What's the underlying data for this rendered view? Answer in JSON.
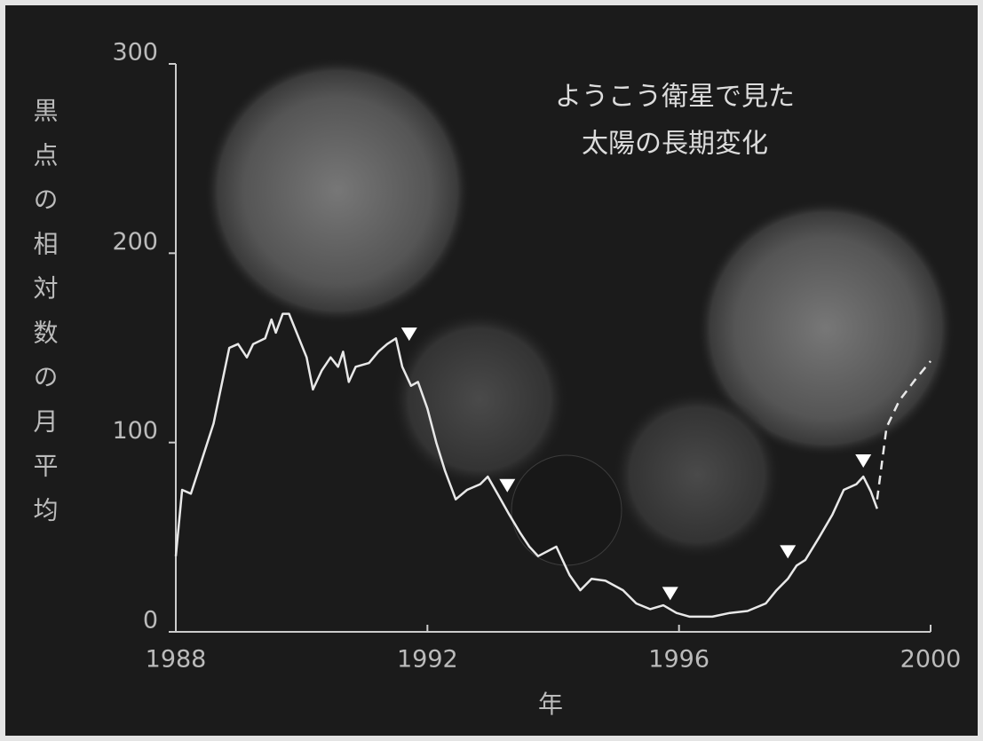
{
  "chart_data": {
    "type": "line",
    "title": [
      "ようこう衛星で見た",
      "太陽の長期変化"
    ],
    "ylabel": "黒点の相対数の月平均",
    "xlabel": "年",
    "xlim": [
      1988,
      2000
    ],
    "xticks": [
      1988,
      1992,
      1996,
      2000
    ],
    "ylim": [
      0,
      300
    ],
    "yticks": [
      0,
      100,
      200,
      300
    ],
    "series": [
      {
        "color": "#e8e8e8",
        "style": "solid",
        "x": [
          1988.0,
          1988.1,
          1988.24,
          1988.6,
          1988.85,
          1988.99,
          1989.13,
          1989.23,
          1989.42,
          1989.52,
          1989.59,
          1989.7,
          1989.8,
          1990.08,
          1990.18,
          1990.32,
          1990.46,
          1990.58,
          1990.66,
          1990.75,
          1990.86,
          1991.07,
          1991.22,
          1991.36,
          1991.5,
          1991.6,
          1991.74,
          1991.85,
          1992.0,
          1992.14,
          1992.28,
          1992.45,
          1992.63,
          1992.84,
          1992.96,
          1993.13,
          1993.3,
          1993.48,
          1993.62,
          1993.76,
          1994.05,
          1994.26,
          1994.43,
          1994.61,
          1994.83,
          1995.11,
          1995.32,
          1995.54,
          1995.75,
          1995.96,
          1996.17,
          1996.53,
          1996.81,
          1997.09,
          1997.38,
          1997.55,
          1997.73,
          1997.87,
          1998.01,
          1998.23,
          1998.44,
          1998.62,
          1998.82,
          1998.93,
          1999.05,
          1999.15
        ],
        "values": [
          40,
          75,
          73,
          110,
          150,
          152,
          145,
          152,
          155,
          165,
          158,
          168,
          168,
          145,
          128,
          138,
          145,
          140,
          148,
          132,
          140,
          142,
          148,
          152,
          155,
          140,
          130,
          132,
          118,
          100,
          85,
          70,
          75,
          78,
          82,
          72,
          62,
          52,
          45,
          40,
          45,
          30,
          22,
          28,
          27,
          22,
          15,
          12,
          14,
          10,
          8,
          8,
          10,
          11,
          15,
          22,
          28,
          35,
          38,
          50,
          62,
          75,
          78,
          82,
          74,
          65
        ]
      },
      {
        "color": "#e8e8e8",
        "style": "dashed",
        "x": [
          1999.15,
          1999.3,
          1999.5,
          1999.75,
          2000.0
        ],
        "values": [
          70,
          108,
          122,
          133,
          143
        ]
      },
      {
        "color": "#ffffff",
        "style": "triangle",
        "x": [
          1991.71,
          1993.27,
          1995.86,
          1997.73,
          1998.93
        ],
        "values": [
          157,
          77,
          20,
          42,
          90
        ]
      }
    ]
  }
}
